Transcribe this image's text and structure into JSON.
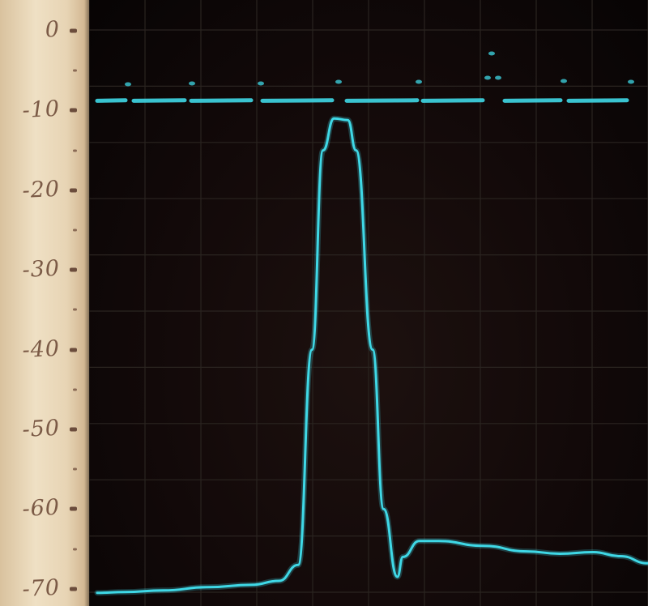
{
  "scale": {
    "labels": [
      "0",
      "-10",
      "-20",
      "-30",
      "-40",
      "-50",
      "-60",
      "-70"
    ],
    "unit_values": [
      0,
      -10,
      -20,
      -30,
      -40,
      -50,
      -60,
      -70
    ]
  },
  "screen": {
    "trace_color": "#3fd8e6",
    "grid_color": "#2a2420",
    "reference_level": -10,
    "trace_levels": [
      [
        0.0,
        -70.5
      ],
      [
        0.05,
        -70.4
      ],
      [
        0.12,
        -70.2
      ],
      [
        0.2,
        -69.8
      ],
      [
        0.28,
        -69.5
      ],
      [
        0.33,
        -69.0
      ],
      [
        0.365,
        -67.0
      ],
      [
        0.39,
        -40.0
      ],
      [
        0.41,
        -15.0
      ],
      [
        0.43,
        -11.0
      ],
      [
        0.455,
        -11.2
      ],
      [
        0.47,
        -15.0
      ],
      [
        0.5,
        -40.0
      ],
      [
        0.52,
        -60.0
      ],
      [
        0.545,
        -68.5
      ],
      [
        0.555,
        -66.0
      ],
      [
        0.585,
        -64.0
      ],
      [
        0.62,
        -64.0
      ],
      [
        0.7,
        -64.6
      ],
      [
        0.78,
        -65.3
      ],
      [
        0.84,
        -65.6
      ],
      [
        0.9,
        -65.4
      ],
      [
        0.95,
        -65.9
      ],
      [
        1.0,
        -66.8
      ]
    ]
  }
}
